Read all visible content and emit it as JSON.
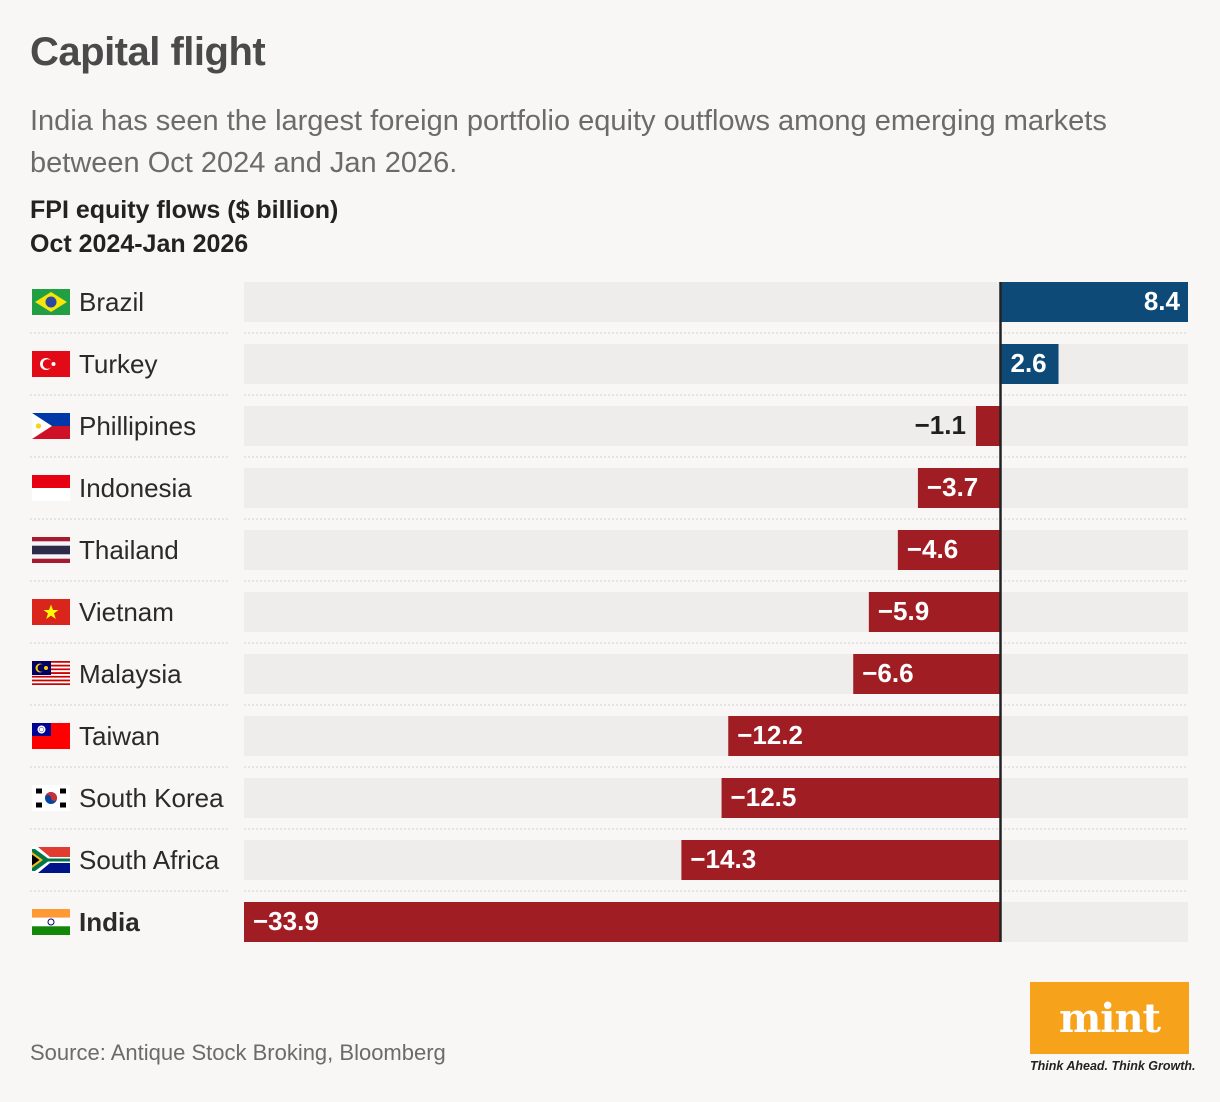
{
  "title": "Capital flight",
  "subtitle": "India has seen the largest foreign portfolio equity outflows among emerging markets between Oct 2024 and Jan 2026.",
  "axis_title_line1": "FPI equity flows ($ billion)",
  "axis_title_line2": "Oct 2024-Jan 2026",
  "source": "Source: Antique Stock Broking, Bloomberg",
  "logo": {
    "wordmark": "mint",
    "tagline": "Think Ahead. Think Growth."
  },
  "colors": {
    "positive": "#0d4a78",
    "negative": "#a01d24",
    "track": "#eeedec",
    "zero_line": "#222222",
    "logo_bg": "#f7a21b"
  },
  "chart_data": {
    "type": "bar",
    "orientation": "horizontal",
    "categories": [
      "Brazil",
      "Turkey",
      "Phillipines",
      "Indonesia",
      "Thailand",
      "Vietnam",
      "Malaysia",
      "Taiwan",
      "South Korea",
      "South Africa",
      "India"
    ],
    "value_labels": [
      "8.4",
      "2.6",
      "−1.1",
      "−3.7",
      "−4.6",
      "−5.9",
      "−6.6",
      "−12.2",
      "−12.5",
      "−14.3",
      "−33.9"
    ],
    "values": [
      8.4,
      2.6,
      -1.1,
      -3.7,
      -4.6,
      -5.9,
      -6.6,
      -12.2,
      -12.5,
      -14.3,
      -33.9
    ],
    "flags": [
      "brazil-flag-icon",
      "turkey-flag-icon",
      "philippines-flag-icon",
      "indonesia-flag-icon",
      "thailand-flag-icon",
      "vietnam-flag-icon",
      "malaysia-flag-icon",
      "taiwan-flag-icon",
      "south-korea-flag-icon",
      "south-africa-flag-icon",
      "india-flag-icon"
    ],
    "highlight": "India",
    "xlim": [
      -33.9,
      8.4
    ],
    "grid": false,
    "legend": "none"
  }
}
